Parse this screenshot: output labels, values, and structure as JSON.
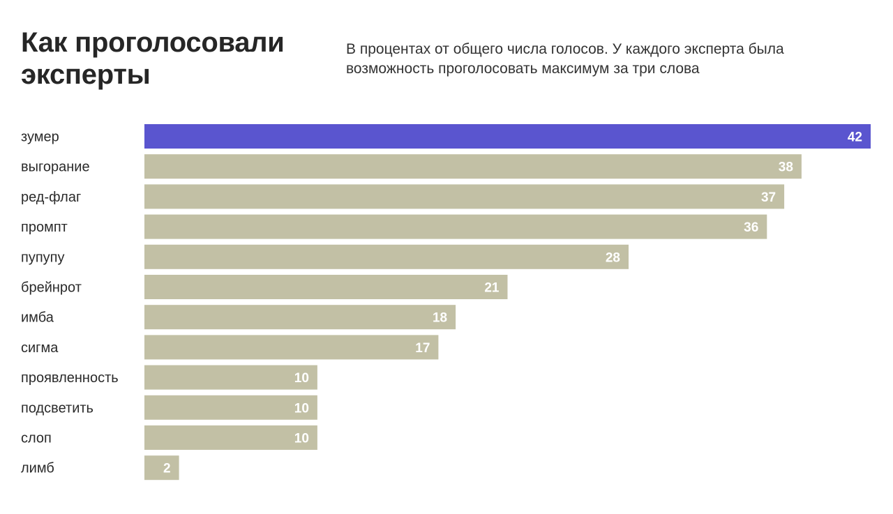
{
  "header": {
    "title": "Как проголосовали эксперты",
    "subtitle": "В процентах от общего числа голосов. У каждого эксперта была возможность проголосовать максимум за три слова"
  },
  "colors": {
    "highlight": "#5a55cf",
    "bar": "#c2c0a5",
    "value_text": "#ffffff",
    "label_text": "#2a2a2a"
  },
  "chart_data": {
    "type": "bar",
    "orientation": "horizontal",
    "title": "Как проголосовали эксперты",
    "subtitle": "В процентах от общего числа голосов. У каждого эксперта была возможность проголосовать максимум за три слова",
    "categories": [
      "зумер",
      "выгорание",
      "ред-флаг",
      "промпт",
      "пупупу",
      "брейнрот",
      "имба",
      "сигма",
      "проявленность",
      "подсветить",
      "слоп",
      "лимб"
    ],
    "values": [
      42,
      38,
      37,
      36,
      28,
      21,
      18,
      17,
      10,
      10,
      10,
      2
    ],
    "highlight": "зумер",
    "xlim": [
      0,
      42
    ],
    "grid": false,
    "legend": "none",
    "data_labels": "inside-end"
  }
}
